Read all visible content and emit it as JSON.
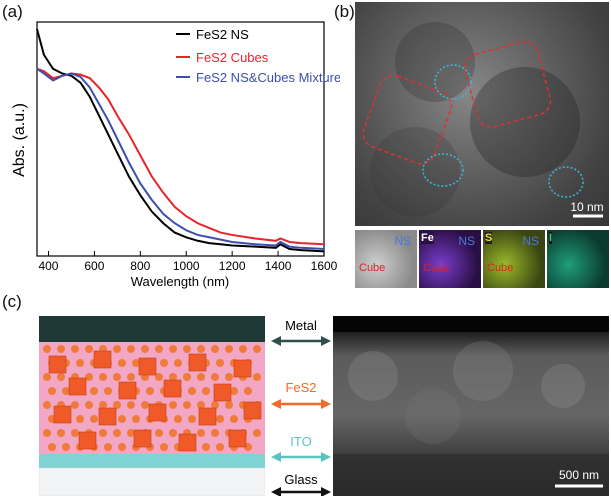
{
  "panels": {
    "a": "(a)",
    "b": "(b)",
    "c": "(c)"
  },
  "chart_data": {
    "type": "line",
    "xlabel": "Wavelength (nm)",
    "ylabel": "Abs. (a.u.)",
    "xlim": [
      350,
      1600
    ],
    "xticks": [
      400,
      600,
      800,
      1000,
      1200,
      1400,
      1600
    ],
    "legend_position": "top-right",
    "series": [
      {
        "name": "FeS2 NS",
        "color": "#000000",
        "x": [
          350,
          380,
          420,
          460,
          500,
          540,
          580,
          620,
          660,
          700,
          750,
          800,
          850,
          900,
          950,
          1000,
          1050,
          1100,
          1150,
          1200,
          1300,
          1390,
          1410,
          1450,
          1500,
          1600
        ],
        "y": [
          0.97,
          0.86,
          0.8,
          0.78,
          0.77,
          0.74,
          0.68,
          0.6,
          0.52,
          0.44,
          0.34,
          0.26,
          0.19,
          0.14,
          0.1,
          0.08,
          0.065,
          0.055,
          0.05,
          0.045,
          0.04,
          0.035,
          0.05,
          0.03,
          0.025,
          0.02
        ]
      },
      {
        "name": "FeS2 Cubes",
        "color": "#e8242b",
        "x": [
          350,
          380,
          420,
          460,
          500,
          540,
          580,
          620,
          660,
          700,
          750,
          800,
          850,
          900,
          950,
          1000,
          1050,
          1100,
          1150,
          1200,
          1300,
          1390,
          1410,
          1450,
          1500,
          1600
        ],
        "y": [
          0.8,
          0.79,
          0.76,
          0.77,
          0.78,
          0.775,
          0.76,
          0.72,
          0.67,
          0.6,
          0.52,
          0.43,
          0.34,
          0.27,
          0.21,
          0.17,
          0.14,
          0.12,
          0.1,
          0.09,
          0.075,
          0.065,
          0.075,
          0.06,
          0.055,
          0.05
        ]
      },
      {
        "name": "FeS2 NS&Cubes Mixture",
        "color": "#3b4fae",
        "x": [
          350,
          380,
          420,
          460,
          500,
          540,
          580,
          620,
          660,
          700,
          750,
          800,
          850,
          900,
          950,
          1000,
          1050,
          1100,
          1150,
          1200,
          1300,
          1390,
          1410,
          1450,
          1500,
          1600
        ],
        "y": [
          0.8,
          0.78,
          0.75,
          0.77,
          0.78,
          0.765,
          0.72,
          0.65,
          0.58,
          0.5,
          0.4,
          0.31,
          0.24,
          0.18,
          0.14,
          0.11,
          0.09,
          0.08,
          0.07,
          0.06,
          0.05,
          0.045,
          0.06,
          0.04,
          0.035,
          0.03
        ]
      }
    ]
  },
  "tem": {
    "scale_bar": "10 nm",
    "maps": [
      {
        "element": "",
        "label_ns": "NS",
        "label_cube": "Cube",
        "tint": "#cfcfcf",
        "bg": "#8a8a8a",
        "chip": "#ffffff"
      },
      {
        "element": "Fe",
        "label_ns": "NS",
        "label_cube": "Cube",
        "tint": "#7a3dcc",
        "bg": "#2a0f45",
        "chip": "#ffffff"
      },
      {
        "element": "S",
        "label_ns": "NS",
        "label_cube": "Cube",
        "tint": "#9bbb2a",
        "bg": "#3b4512",
        "chip": "#e8e030"
      },
      {
        "element": "I",
        "label_ns": "",
        "label_cube": "",
        "tint": "#1e9e7a",
        "bg": "#0b3a2e",
        "chip": "#3ecf6a"
      }
    ]
  },
  "device": {
    "layers": [
      {
        "label": "Metal",
        "arrow_color": "#2f4f4f"
      },
      {
        "label": "FeS2",
        "arrow_color": "#f06a2a"
      },
      {
        "label": "ITO",
        "arrow_color": "#5cc3c3"
      },
      {
        "label": "Glass",
        "arrow_color": "#111111"
      }
    ],
    "scale_bar": "500 nm",
    "colors": {
      "metal": "#1f3a36",
      "absorber": "#f2a7c4",
      "ito": "#7fd3d3",
      "glass": "#f1f3f5",
      "cube": "#f05a28",
      "sphere": "#f07a3a"
    }
  }
}
